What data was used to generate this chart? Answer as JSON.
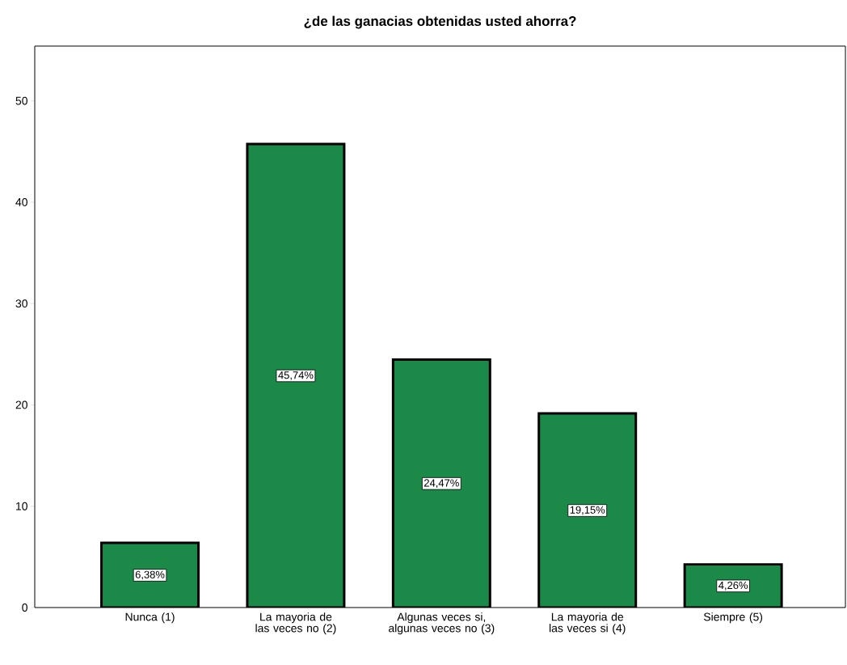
{
  "chart_data": {
    "type": "bar",
    "title": "¿de las ganacias obtenidas usted ahorra?",
    "categories": [
      "Nunca (1)",
      "La mayoria de las veces no (2)",
      "Algunas veces si, algunas veces no (3)",
      "La mayoria de las veces si (4)",
      "Siempre (5)"
    ],
    "values": [
      6.38,
      45.74,
      24.47,
      19.15,
      4.26
    ],
    "value_labels": [
      "6,38%",
      "45,74%",
      "24,47%",
      "19,15%",
      "4,26%"
    ],
    "color": "#1b8a48",
    "ylim": [
      0,
      55.4
    ],
    "yticks": [
      0,
      10,
      20,
      30,
      40,
      50
    ]
  }
}
